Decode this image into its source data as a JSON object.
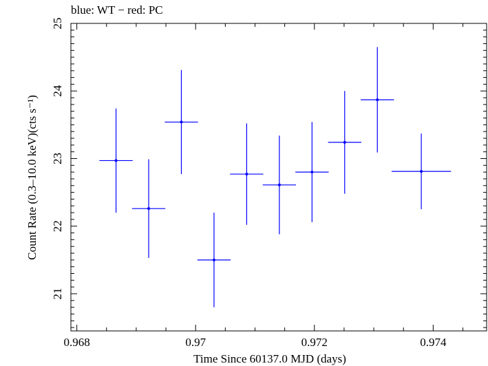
{
  "chart_data": {
    "type": "scatter",
    "title": "blue: WT − red: PC",
    "xlabel": "Time Since 60137.0 MJD (days)",
    "ylabel": "Count Rate (0.3–10.0 keV)(cts s⁻¹)",
    "xlim": [
      0.9679,
      0.9749
    ],
    "ylim": [
      20.45,
      25.0
    ],
    "x_ticks": [
      0.968,
      0.97,
      0.972,
      0.974
    ],
    "x_tick_labels": [
      "0.968",
      "0.97",
      "0.972",
      "0.974"
    ],
    "y_ticks": [
      21,
      22,
      23,
      24,
      25
    ],
    "y_tick_labels": [
      "21",
      "22",
      "23",
      "24",
      "25"
    ],
    "grid": false,
    "color": "#0000ff",
    "series": [
      {
        "points": [
          {
            "x": 0.96866,
            "y": 22.97,
            "xerr": 0.00028,
            "yerr": 0.77
          },
          {
            "x": 0.96921,
            "y": 22.26,
            "xerr": 0.00028,
            "yerr": 0.73
          },
          {
            "x": 0.96976,
            "y": 23.54,
            "xerr": 0.00028,
            "yerr": 0.77
          },
          {
            "x": 0.97031,
            "y": 21.5,
            "xerr": 0.00028,
            "yerr": 0.7
          },
          {
            "x": 0.97086,
            "y": 22.77,
            "xerr": 0.00028,
            "yerr": 0.75
          },
          {
            "x": 0.97141,
            "y": 22.61,
            "xerr": 0.00028,
            "yerr": 0.73
          },
          {
            "x": 0.97196,
            "y": 22.8,
            "xerr": 0.00028,
            "yerr": 0.74
          },
          {
            "x": 0.97251,
            "y": 23.24,
            "xerr": 0.00028,
            "yerr": 0.76
          },
          {
            "x": 0.97306,
            "y": 23.87,
            "xerr": 0.00028,
            "yerr": 0.78
          },
          {
            "x": 0.9738,
            "y": 22.81,
            "xerr": 0.0005,
            "yerr": 0.56
          }
        ]
      }
    ]
  }
}
